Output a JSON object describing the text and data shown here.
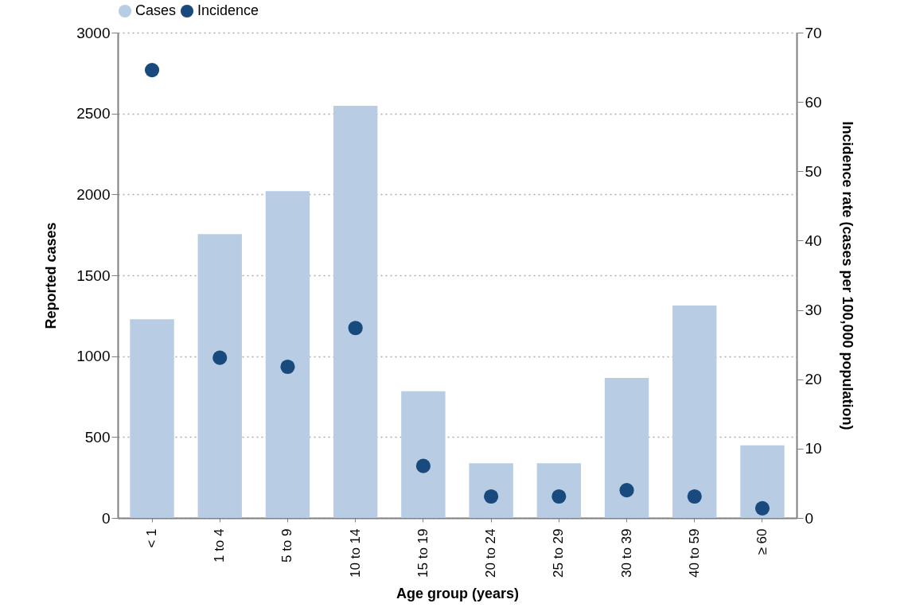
{
  "chart_data": {
    "type": "bar",
    "xlabel": "Age group (years)",
    "ylabel": "Reported cases",
    "y2label": "Incidence rate (cases per 100,000 population)",
    "categories": [
      "< 1",
      "1 to 4",
      "5 to 9",
      "10 to 14",
      "15 to 19",
      "20 to 24",
      "25 to 29",
      "30 to 39",
      "40 to 59",
      "≥ 60"
    ],
    "series": [
      {
        "name": "Cases",
        "color": "#b8cce4",
        "values": [
          1228,
          1755,
          2020,
          2547,
          783,
          338,
          338,
          866,
          1313,
          449
        ]
      },
      {
        "name": "Incidence",
        "type": "scatter",
        "axis": "y2",
        "color": "#184a7e",
        "values": [
          64.6,
          23.1,
          21.8,
          27.4,
          7.5,
          3.1,
          3.1,
          4.0,
          3.1,
          1.4
        ]
      }
    ],
    "ylim": [
      0,
      3000
    ],
    "yticks": [
      0,
      500,
      1000,
      1500,
      2000,
      2500,
      3000
    ],
    "y2lim": [
      0,
      70
    ],
    "y2ticks": [
      0,
      10,
      20,
      30,
      40,
      50,
      60,
      70
    ],
    "grid": "y",
    "legend": "top",
    "marker": "circle"
  }
}
